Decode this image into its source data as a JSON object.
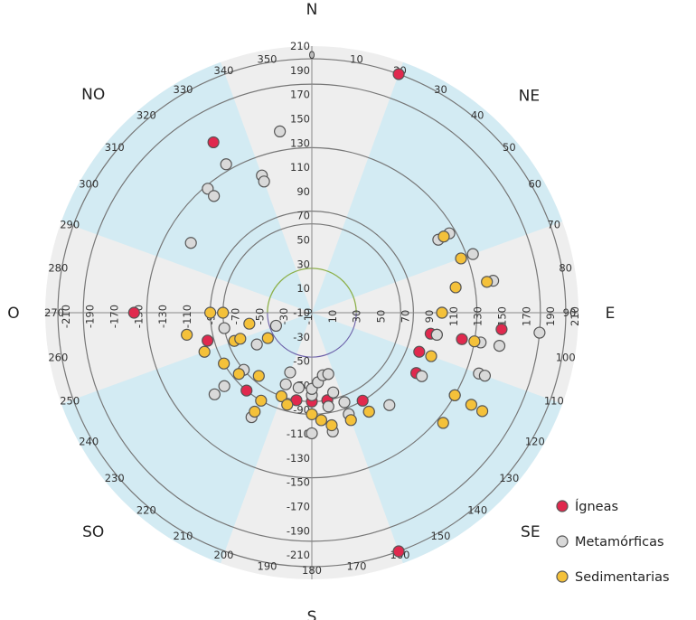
{
  "chart_data": {
    "type": "scatter",
    "title": "",
    "radial_axis": {
      "ylim": [
        -210,
        210
      ],
      "ticks": [
        -210,
        -190,
        -170,
        -150,
        -130,
        -110,
        -90,
        -70,
        -50,
        -30,
        -10,
        10,
        30,
        50,
        70,
        90,
        110,
        130,
        150,
        170,
        190,
        210
      ]
    },
    "angular_axis": {
      "ticks": [
        0,
        10,
        20,
        30,
        40,
        50,
        60,
        70,
        80,
        90,
        100,
        110,
        120,
        130,
        140,
        150,
        160,
        170,
        180,
        190,
        200,
        210,
        220,
        230,
        240,
        250,
        260,
        270,
        280,
        290,
        300,
        310,
        320,
        330,
        340,
        350
      ]
    },
    "directions": [
      "N",
      "NE",
      "E",
      "SE",
      "S",
      "SO",
      "O",
      "NO"
    ],
    "legend_position": "bottom-right",
    "colors": {
      "sector_blue": "#d3ebf3",
      "sector_gray": "#eeeeee",
      "inner_circle": "#8db04a",
      "axis": "#888888"
    },
    "series": [
      {
        "name": "Ígneas",
        "color": "#e0294e",
        "points": [
          [
            20,
            190
          ],
          [
            330,
            100
          ],
          [
            270,
            70
          ],
          [
            255,
            -40
          ],
          [
            220,
            -50
          ],
          [
            190,
            -70
          ],
          [
            180,
            -70
          ],
          [
            170,
            -70
          ],
          [
            150,
            -50
          ],
          [
            120,
            -20
          ],
          [
            110,
            -30
          ],
          [
            100,
            -20
          ],
          [
            100,
            -10
          ],
          [
            100,
            30
          ],
          [
            95,
            90
          ],
          [
            160,
            190
          ]
        ]
      },
      {
        "name": "Metamórficas",
        "color": "#d9d9d9",
        "points": [
          [
            350,
            80
          ],
          [
            330,
            60
          ],
          [
            320,
            45
          ],
          [
            320,
            30
          ],
          [
            340,
            20
          ],
          [
            340,
            10
          ],
          [
            300,
            10
          ],
          [
            230,
            -10
          ],
          [
            210,
            -20
          ],
          [
            180,
            -20
          ],
          [
            170,
            -20
          ],
          [
            150,
            -30
          ],
          [
            140,
            -20
          ],
          [
            120,
            -10
          ],
          [
            100,
            -10
          ],
          [
            90,
            -5
          ],
          [
            60,
            20
          ],
          [
            60,
            40
          ],
          [
            70,
            60
          ],
          [
            80,
            80
          ],
          [
            100,
            60
          ],
          [
            110,
            70
          ],
          [
            120,
            50
          ],
          [
            110,
            80
          ],
          [
            100,
            90
          ],
          [
            95,
            150
          ],
          [
            160,
            -40
          ],
          [
            170,
            -60
          ],
          [
            180,
            -80
          ],
          [
            190,
            -90
          ],
          [
            200,
            -90
          ],
          [
            200,
            -110
          ],
          [
            230,
            -70
          ],
          [
            230,
            -30
          ],
          [
            260,
            -70
          ],
          [
            240,
            -110
          ],
          [
            250,
            -150
          ],
          [
            180,
            -90
          ],
          [
            175,
            -100
          ],
          [
            170,
            -110
          ],
          [
            165,
            -110
          ],
          [
            165,
            -80
          ],
          [
            160,
            -60
          ]
        ]
      },
      {
        "name": "Sedimentarias",
        "color": "#f4c13a",
        "points": [
          [
            270,
            -50
          ],
          [
            260,
            -10
          ],
          [
            250,
            -30
          ],
          [
            240,
            -50
          ],
          [
            230,
            -60
          ],
          [
            220,
            -80
          ],
          [
            210,
            -50
          ],
          [
            200,
            -70
          ],
          [
            195,
            -60
          ],
          [
            180,
            -50
          ],
          [
            175,
            -40
          ],
          [
            170,
            -30
          ],
          [
            160,
            -30
          ],
          [
            150,
            -30
          ],
          [
            110,
            -10
          ],
          [
            90,
            -5
          ],
          [
            80,
            20
          ],
          [
            70,
            40
          ],
          [
            60,
            30
          ],
          [
            80,
            70
          ],
          [
            100,
            50
          ],
          [
            120,
            50
          ],
          [
            130,
            60
          ],
          [
            120,
            80
          ],
          [
            120,
            100
          ],
          [
            250,
            -80
          ],
          [
            250,
            -90
          ],
          [
            240,
            -130
          ],
          [
            270,
            -70
          ],
          [
            260,
            -110
          ],
          [
            210,
            -30
          ]
        ]
      }
    ]
  }
}
